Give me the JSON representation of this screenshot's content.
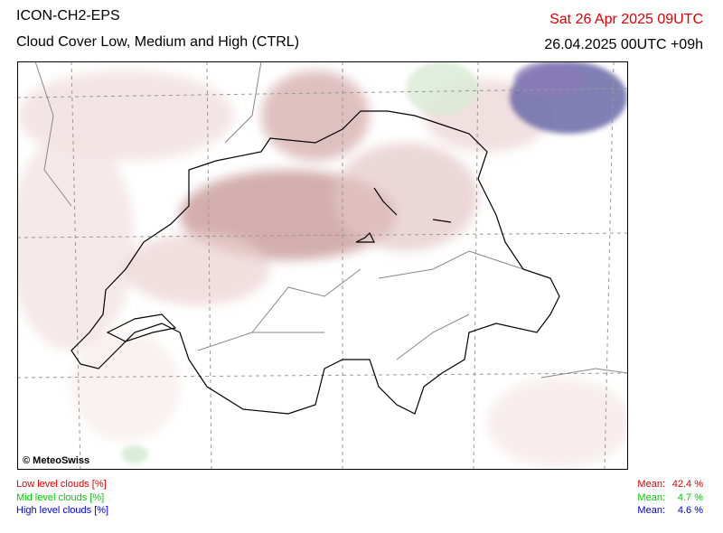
{
  "header": {
    "model": "ICON-CH2-EPS",
    "title": "Cloud Cover Low, Medium and High (CTRL)",
    "valid_time": "Sat 26 Apr 2025 09UTC",
    "run": "26.04.2025 00UTC +09h"
  },
  "map": {
    "credit": "© MeteoSwiss"
  },
  "legend": [
    {
      "label": "Low level clouds [%]",
      "mean_label": "Mean:",
      "mean": "42.4 %",
      "color": "#e00000"
    },
    {
      "label": "Mid level clouds [%]",
      "mean_label": "Mean:",
      "mean": "4.7 %",
      "color": "#00cc00"
    },
    {
      "label": "High level clouds [%]",
      "mean_label": "Mean:",
      "mean": "4.6 %",
      "color": "#0000dd"
    }
  ]
}
